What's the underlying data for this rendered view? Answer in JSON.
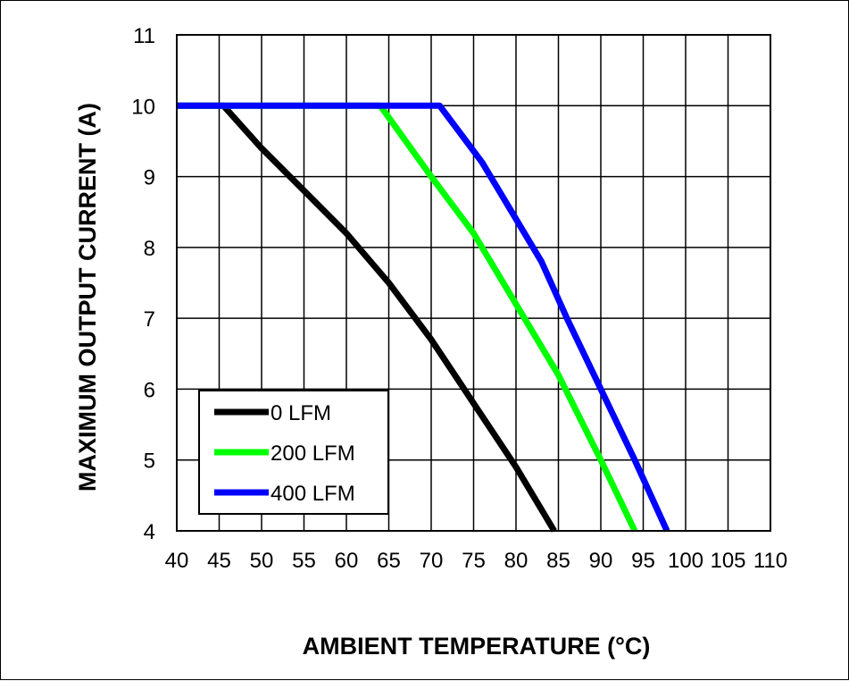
{
  "chart_data": {
    "type": "line",
    "title": "",
    "xlabel": "AMBIENT TEMPERATURE (°C)",
    "ylabel": "MAXIMUM OUTPUT CURRENT (A)",
    "xlim": [
      40,
      110
    ],
    "ylim": [
      4,
      11
    ],
    "grid": true,
    "legend_position": "bottom-left",
    "x_ticks": [
      40,
      45,
      50,
      55,
      60,
      65,
      70,
      75,
      80,
      85,
      90,
      95,
      100,
      105,
      110
    ],
    "x_tick_labels": [
      "40",
      "45",
      "50",
      "55",
      "60",
      "65",
      "70",
      "75",
      "80",
      "85",
      "90",
      "95",
      "100",
      "105",
      "110"
    ],
    "y_ticks": [
      4,
      5,
      6,
      7,
      8,
      9,
      10,
      11
    ],
    "y_tick_labels": [
      "4",
      "5",
      "6",
      "7",
      "8",
      "9",
      "10",
      "11"
    ],
    "series": [
      {
        "name": "0 LFM",
        "color": "#000000",
        "points": [
          [
            40,
            10
          ],
          [
            45.5,
            10
          ],
          [
            50,
            9.4
          ],
          [
            55,
            8.8
          ],
          [
            60,
            8.2
          ],
          [
            65,
            7.5
          ],
          [
            70,
            6.7
          ],
          [
            75,
            5.8
          ],
          [
            80,
            4.9
          ],
          [
            84.5,
            4
          ]
        ]
      },
      {
        "name": "200 LFM",
        "color": "#00ff00",
        "points": [
          [
            40,
            10
          ],
          [
            64,
            10
          ],
          [
            67,
            9.5
          ],
          [
            70,
            9.0
          ],
          [
            75,
            8.2
          ],
          [
            80,
            7.2
          ],
          [
            85,
            6.2
          ],
          [
            90,
            5.0
          ],
          [
            94,
            4
          ]
        ]
      },
      {
        "name": "400 LFM",
        "color": "#0000ff",
        "points": [
          [
            40,
            10
          ],
          [
            71,
            10
          ],
          [
            73.5,
            9.6
          ],
          [
            76,
            9.2
          ],
          [
            80,
            8.4
          ],
          [
            83,
            7.8
          ],
          [
            86,
            7.0
          ],
          [
            90,
            6.0
          ],
          [
            94,
            5.0
          ],
          [
            97.8,
            4
          ]
        ]
      }
    ]
  }
}
